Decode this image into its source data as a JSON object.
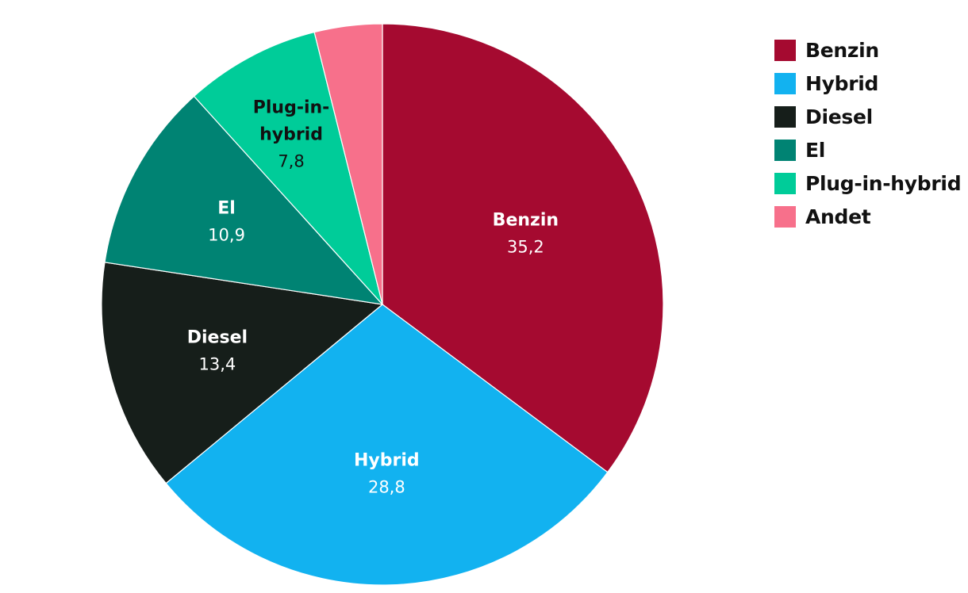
{
  "chart_data": {
    "type": "pie",
    "slices": [
      {
        "label": "Benzin",
        "value": 35.2,
        "value_text": "35,2",
        "color": "#a50a30",
        "text_color": "#ffffff"
      },
      {
        "label": "Hybrid",
        "value": 28.8,
        "value_text": "28,8",
        "color": "#12b2f0",
        "text_color": "#ffffff"
      },
      {
        "label": "Diesel",
        "value": 13.4,
        "value_text": "13,4",
        "color": "#161e1a",
        "text_color": "#ffffff"
      },
      {
        "label": "El",
        "value": 10.9,
        "value_text": "10,9",
        "color": "#008373",
        "text_color": "#ffffff"
      },
      {
        "label": "Plug-in-hybrid",
        "label_lines": [
          "Plug-in-",
          "hybrid"
        ],
        "value": 7.8,
        "value_text": "7,8",
        "color": "#00cc99",
        "text_color": "#111111"
      },
      {
        "label": "Andet",
        "value": 3.9,
        "value_text": "",
        "color": "#f7708b",
        "text_color": "#111111"
      }
    ],
    "legend_position": "top-right"
  }
}
